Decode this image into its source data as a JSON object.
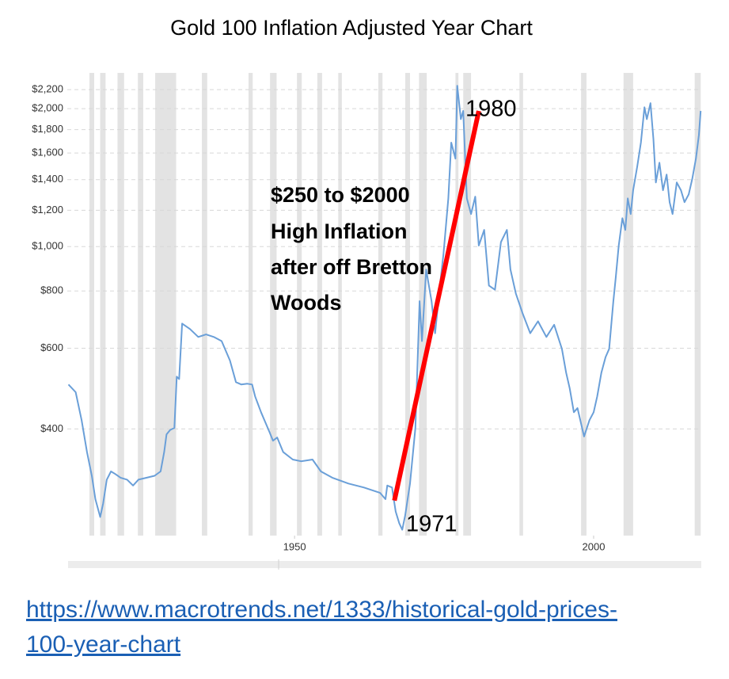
{
  "chart_data": {
    "type": "line",
    "title": "Gold 100 Inflation Adjusted Year Chart",
    "yscale": "log",
    "grid": true,
    "color": "#6a9fd8",
    "x": [
      1912.2,
      1913.4,
      1914.4,
      1915.3,
      1916.1,
      1916.7,
      1917.5,
      1918.0,
      1918.6,
      1919.3,
      1920.0,
      1920.9,
      1922.0,
      1923.0,
      1923.9,
      1925.3,
      1926.6,
      1927.6,
      1928.2,
      1928.6,
      1929.2,
      1929.9,
      1930.3,
      1930.7,
      1931.2,
      1932.5,
      1933.9,
      1935.2,
      1936.5,
      1937.8,
      1939.2,
      1940.2,
      1941.1,
      1942.1,
      1942.9,
      1943.4,
      1944.4,
      1945.8,
      1946.4,
      1947.1,
      1948.1,
      1949.7,
      1951.1,
      1953.0,
      1954.4,
      1956.3,
      1959.0,
      1961.6,
      1964.3,
      1965.2,
      1965.5,
      1966.3,
      1966.5,
      1966.9,
      1967.5,
      1968.0,
      1968.5,
      1969.3,
      1970.2,
      1970.9,
      1971.3,
      1972.0,
      1972.9,
      1973.5,
      1974.3,
      1974.9,
      1975.7,
      1976.2,
      1976.9,
      1977.2,
      1977.8,
      1978.2,
      1978.8,
      1979.5,
      1980.2,
      1980.8,
      1981.7,
      1982.5,
      1983.5,
      1984.5,
      1985.5,
      1986.1,
      1987.0,
      1988.1,
      1989.4,
      1990.7,
      1992.1,
      1993.4,
      1994.7,
      1995.4,
      1996.0,
      1996.7,
      1997.3,
      1998.4,
      1999.3,
      2000.0,
      2000.6,
      2001.3,
      2002.0,
      2002.6,
      2003.3,
      2003.7,
      2004.2,
      2004.8,
      2005.3,
      2005.7,
      2006.2,
      2006.6,
      2007.3,
      2007.9,
      2008.5,
      2008.9,
      2009.5,
      2010.0,
      2010.4,
      2011.0,
      2011.6,
      2012.2,
      2012.7,
      2013.2,
      2013.9,
      2014.6,
      2015.2,
      2015.9,
      2016.5,
      2017.1,
      2017.6,
      2017.9
    ],
    "values": [
      500,
      481,
      418,
      356,
      316,
      281,
      257,
      275,
      310,
      323,
      319,
      313,
      310,
      301,
      310,
      313,
      316,
      323,
      356,
      389,
      398,
      402,
      520,
      514,
      679,
      661,
      635,
      643,
      635,
      622,
      564,
      506,
      500,
      502,
      500,
      471,
      435,
      394,
      377,
      383,
      356,
      343,
      340,
      343,
      323,
      313,
      304,
      298,
      290,
      281,
      301,
      298,
      286,
      264,
      249,
      241,
      259,
      304,
      402,
      760,
      622,
      891,
      760,
      647,
      822,
      964,
      1274,
      1686,
      1556,
      2244,
      1897,
      1977,
      1274,
      1178,
      1285,
      1005,
      1087,
      822,
      805,
      1023,
      1087,
      891,
      790,
      716,
      647,
      687,
      635,
      675,
      598,
      531,
      490,
      435,
      444,
      385,
      418,
      435,
      471,
      531,
      574,
      598,
      760,
      855,
      1005,
      1153,
      1087,
      1274,
      1178,
      1327,
      1496,
      1686,
      2014,
      1897,
      2056,
      1718,
      1380,
      1524,
      1327,
      1436,
      1250,
      1178,
      1380,
      1327,
      1250,
      1300,
      1409,
      1556,
      1754,
      1977
    ],
    "xlim": [
      1912,
      2018
    ],
    "xticks": [
      1950,
      2000
    ],
    "ylim": [
      234,
      2300
    ],
    "yticks": [
      {
        "value": 400,
        "label": "$400"
      },
      {
        "value": 600,
        "label": "$600"
      },
      {
        "value": 800,
        "label": "$800"
      },
      {
        "value": 1000,
        "label": "$1,000"
      },
      {
        "value": 1200,
        "label": "$1,200"
      },
      {
        "value": 1400,
        "label": "$1,400"
      },
      {
        "value": 1600,
        "label": "$1,600"
      },
      {
        "value": 1800,
        "label": "$1,800"
      },
      {
        "value": 2000,
        "label": "$2,000"
      },
      {
        "value": 2200,
        "label": "$2,200"
      }
    ],
    "recession_color": "#e3e3e3",
    "recessions": [
      [
        1915.7,
        1916.5
      ],
      [
        1917.5,
        1918.4
      ],
      [
        1920.4,
        1921.5
      ],
      [
        1923.8,
        1924.7
      ],
      [
        1926.7,
        1930.2
      ],
      [
        1934.5,
        1935.4
      ],
      [
        1942.3,
        1943.0
      ],
      [
        1945.9,
        1947.0
      ],
      [
        1950.4,
        1951.2
      ],
      [
        1953.8,
        1954.6
      ],
      [
        1957.3,
        1957.9
      ],
      [
        1964.0,
        1964.7
      ],
      [
        1968.5,
        1969.3
      ],
      [
        1970.8,
        1972.1
      ],
      [
        1976.9,
        1977.4
      ],
      [
        1978.2,
        1979.5
      ],
      [
        1987.6,
        1988.2
      ],
      [
        1997.9,
        1998.8
      ],
      [
        2005.0,
        2006.6
      ],
      [
        2016.9,
        2017.9
      ]
    ],
    "trend_line": {
      "color": "#ff0000",
      "x": [
        1966.7,
        1980.8
      ],
      "values": [
        279,
        1977
      ]
    },
    "annotations": [
      "$250 to $2000",
      "High Inflation",
      "after off Bretton",
      "Woods",
      "1980",
      "1971"
    ],
    "source": "https://www.macrotrends.net/1333/historical-gold-prices-100-year-chart"
  }
}
